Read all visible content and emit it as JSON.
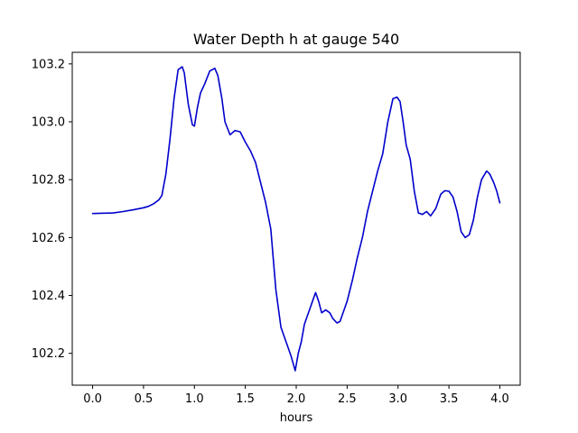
{
  "chart_data": {
    "type": "line",
    "title": "Water Depth h at gauge 540",
    "xlabel": "hours",
    "ylabel": "",
    "xlim": [
      -0.2,
      4.2
    ],
    "ylim": [
      102.09,
      103.24
    ],
    "grid": false,
    "legend": "none",
    "x_ticks": [
      0.0,
      0.5,
      1.0,
      1.5,
      2.0,
      2.5,
      3.0,
      3.5,
      4.0
    ],
    "x_tick_labels": [
      "0.0",
      "0.5",
      "1.0",
      "1.5",
      "2.0",
      "2.5",
      "3.0",
      "3.5",
      "4.0"
    ],
    "y_ticks": [
      102.2,
      102.4,
      102.6,
      102.8,
      103.0,
      103.2
    ],
    "y_tick_labels": [
      "102.2",
      "102.4",
      "102.6",
      "102.8",
      "103.0",
      "103.2"
    ],
    "series": [
      {
        "name": "",
        "color": "#0000cc",
        "x": [
          0.0,
          0.2,
          0.3,
          0.4,
          0.5,
          0.55,
          0.6,
          0.65,
          0.68,
          0.72,
          0.76,
          0.8,
          0.84,
          0.88,
          0.9,
          0.94,
          0.98,
          1.0,
          1.03,
          1.06,
          1.1,
          1.15,
          1.2,
          1.23,
          1.27,
          1.3,
          1.35,
          1.4,
          1.45,
          1.5,
          1.55,
          1.6,
          1.65,
          1.7,
          1.75,
          1.8,
          1.85,
          1.9,
          1.95,
          1.99,
          2.02,
          2.05,
          2.08,
          2.12,
          2.16,
          2.19,
          2.22,
          2.25,
          2.29,
          2.33,
          2.36,
          2.4,
          2.43,
          2.46,
          2.5,
          2.55,
          2.6,
          2.65,
          2.7,
          2.8,
          2.85,
          2.9,
          2.95,
          2.99,
          3.02,
          3.05,
          3.08,
          3.12,
          3.16,
          3.2,
          3.24,
          3.28,
          3.32,
          3.37,
          3.42,
          3.46,
          3.5,
          3.54,
          3.58,
          3.62,
          3.66,
          3.7,
          3.74,
          3.78,
          3.82,
          3.87,
          3.9,
          3.94,
          3.97,
          4.0
        ],
        "y": [
          102.683,
          102.685,
          102.69,
          102.696,
          102.703,
          102.708,
          102.717,
          102.73,
          102.745,
          102.82,
          102.94,
          103.08,
          103.18,
          103.19,
          103.17,
          103.06,
          102.99,
          102.985,
          103.05,
          103.1,
          103.13,
          103.175,
          103.185,
          103.16,
          103.08,
          103.0,
          102.955,
          102.97,
          102.965,
          102.93,
          102.9,
          102.86,
          102.79,
          102.72,
          102.63,
          102.42,
          102.29,
          102.24,
          102.19,
          102.14,
          102.2,
          102.24,
          102.3,
          102.34,
          102.38,
          102.41,
          102.38,
          102.34,
          102.35,
          102.34,
          102.32,
          102.305,
          102.31,
          102.34,
          102.38,
          102.45,
          102.53,
          102.6,
          102.69,
          102.83,
          102.89,
          103.0,
          103.08,
          103.085,
          103.07,
          103.0,
          102.92,
          102.87,
          102.76,
          102.685,
          102.68,
          102.69,
          102.675,
          102.7,
          102.75,
          102.762,
          102.76,
          102.74,
          102.69,
          102.62,
          102.6,
          102.61,
          102.66,
          102.74,
          102.8,
          102.83,
          102.82,
          102.79,
          102.76,
          102.72
        ]
      }
    ]
  }
}
